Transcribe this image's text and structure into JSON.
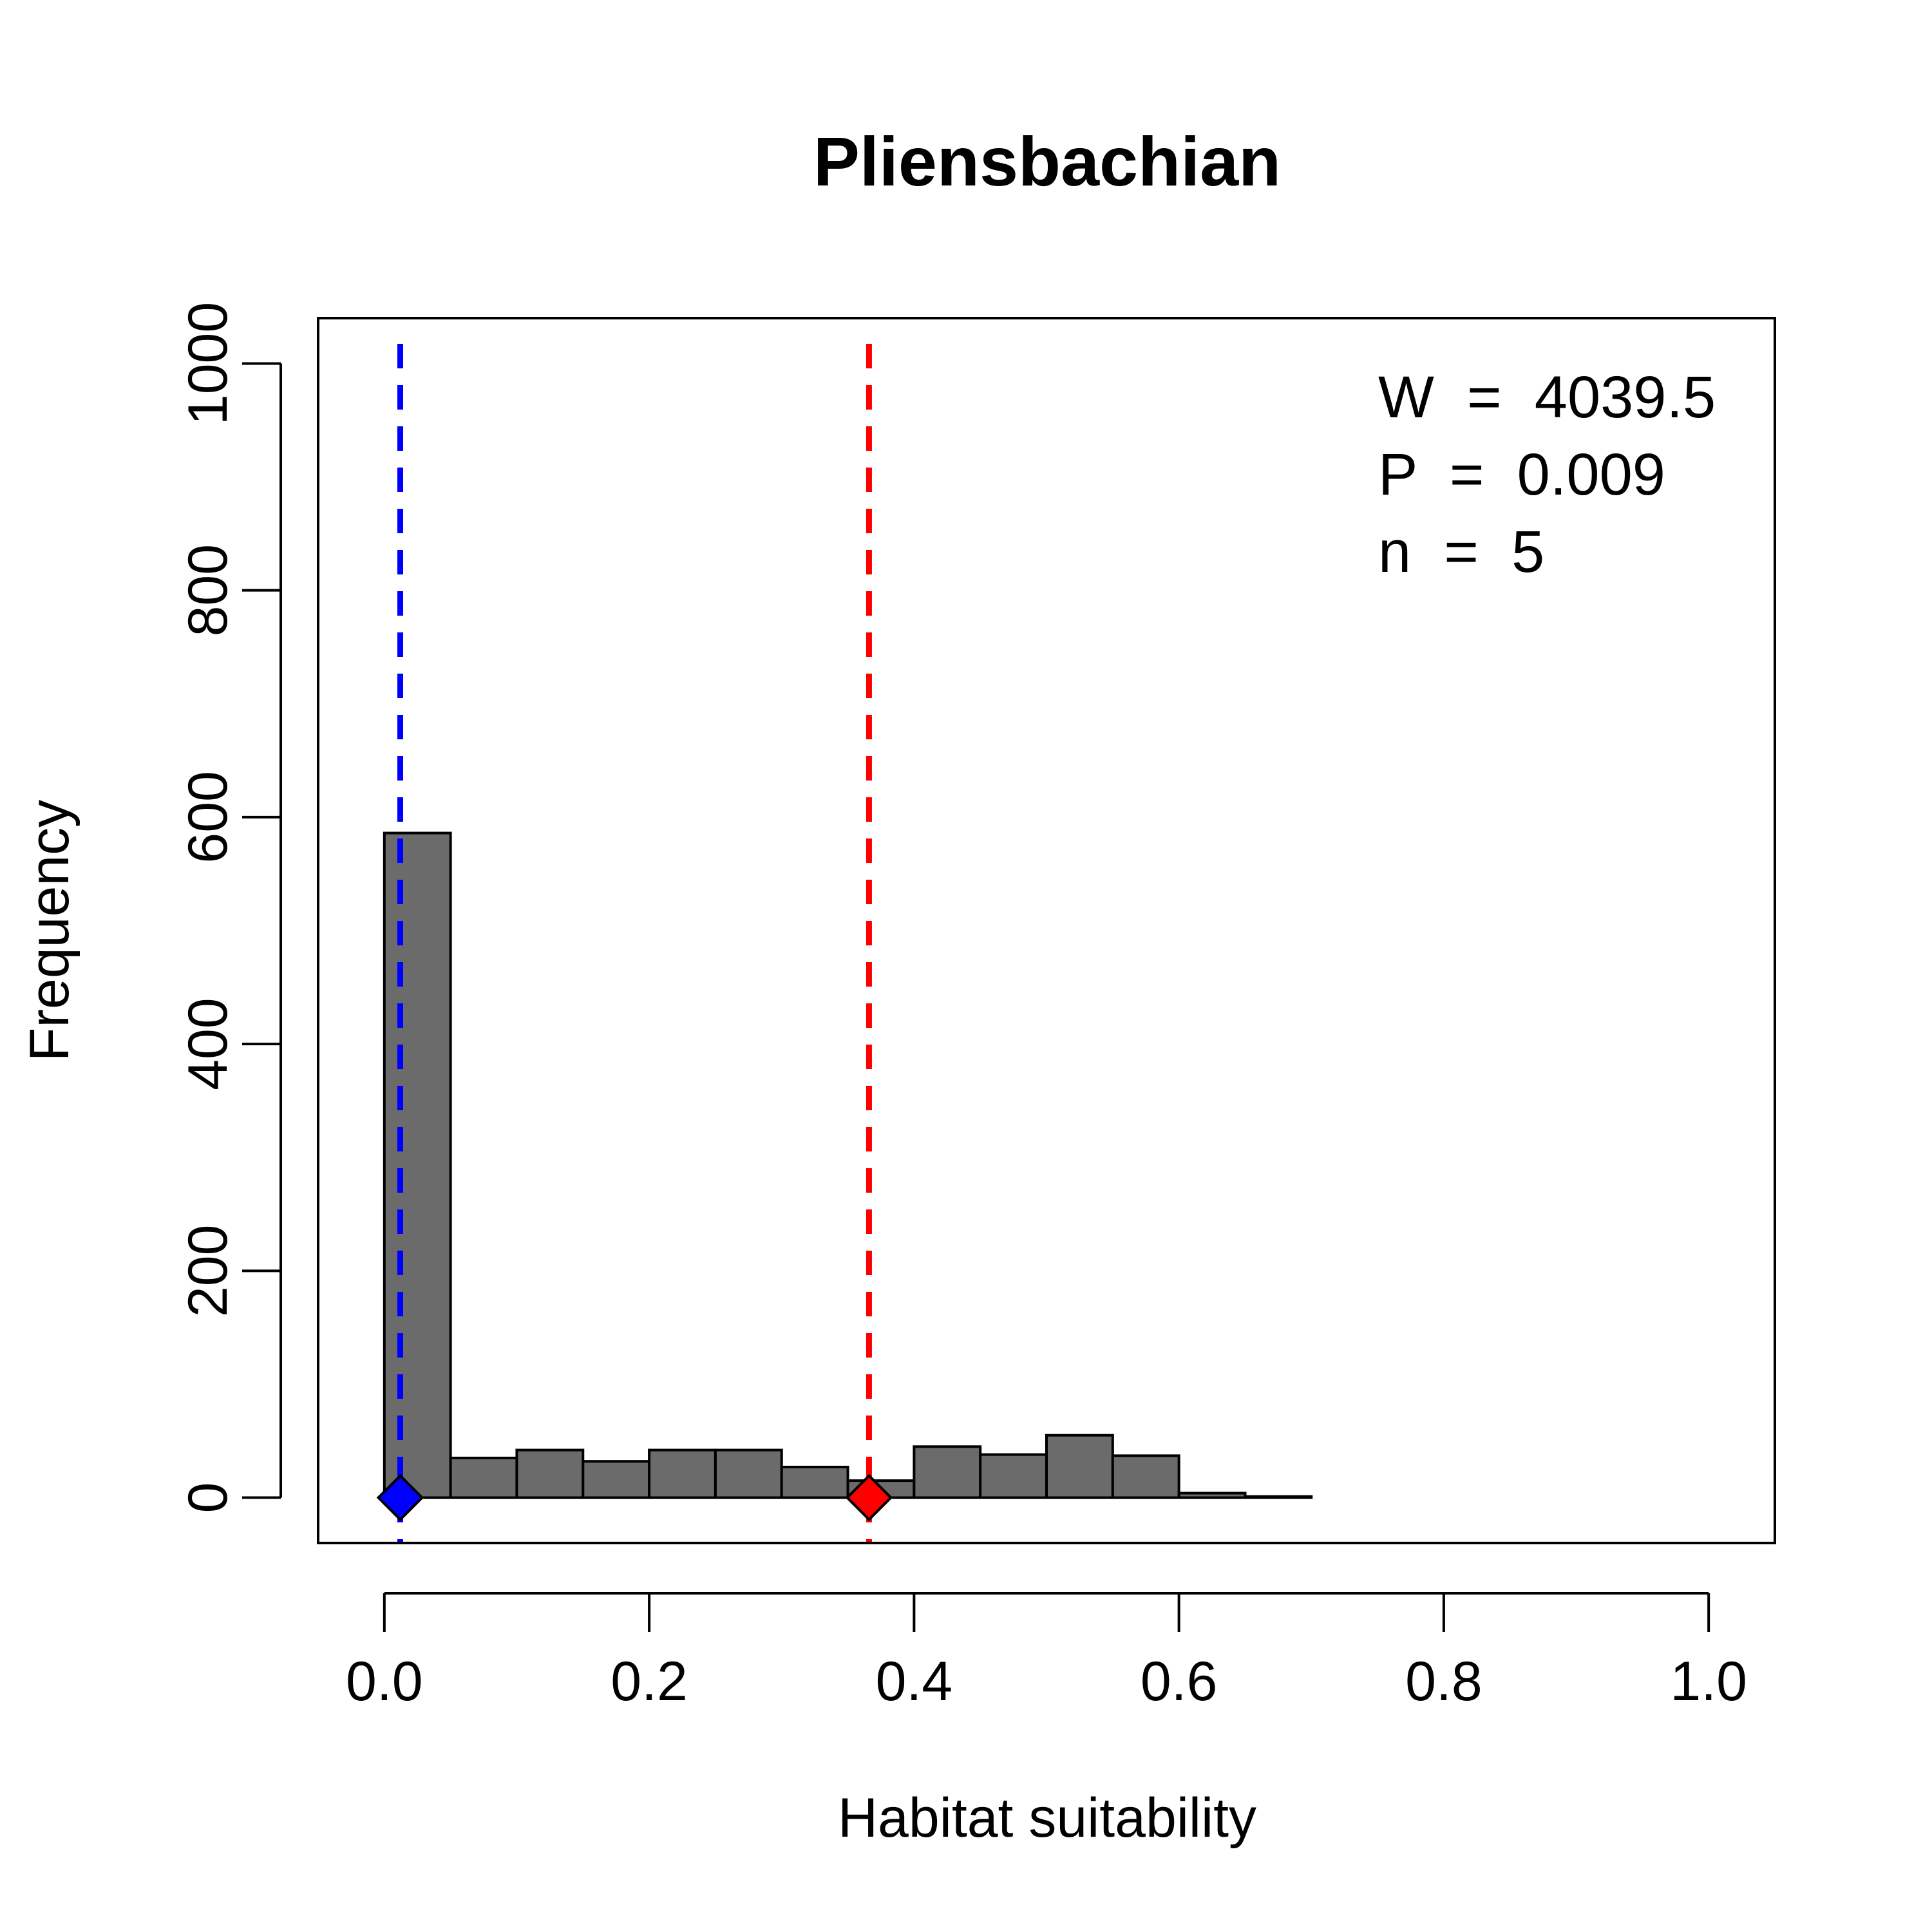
{
  "chart_data": {
    "type": "bar",
    "title": "Pliensbachian",
    "xlabel": "Habitat suitability",
    "ylabel": "Frequency",
    "xlim": [
      -0.05,
      1.05
    ],
    "ylim": [
      -40,
      1040
    ],
    "x_ticks": [
      0.0,
      0.2,
      0.4,
      0.6,
      0.8,
      1.0
    ],
    "x_tick_labels": [
      "0.0",
      "0.2",
      "0.4",
      "0.6",
      "0.8",
      "1.0"
    ],
    "y_ticks": [
      0,
      200,
      400,
      600,
      800,
      1000
    ],
    "y_tick_labels": [
      "0",
      "200",
      "400",
      "600",
      "800",
      "1000"
    ],
    "grid": false,
    "bin_width": 0.05,
    "bins": [
      {
        "x0": 0.0,
        "x1": 0.05,
        "count": 586
      },
      {
        "x0": 0.05,
        "x1": 0.1,
        "count": 35
      },
      {
        "x0": 0.1,
        "x1": 0.15,
        "count": 42
      },
      {
        "x0": 0.15,
        "x1": 0.2,
        "count": 32
      },
      {
        "x0": 0.2,
        "x1": 0.25,
        "count": 42
      },
      {
        "x0": 0.25,
        "x1": 0.3,
        "count": 42
      },
      {
        "x0": 0.3,
        "x1": 0.35,
        "count": 27
      },
      {
        "x0": 0.35,
        "x1": 0.4,
        "count": 15
      },
      {
        "x0": 0.4,
        "x1": 0.45,
        "count": 45
      },
      {
        "x0": 0.45,
        "x1": 0.5,
        "count": 38
      },
      {
        "x0": 0.5,
        "x1": 0.55,
        "count": 55
      },
      {
        "x0": 0.55,
        "x1": 0.6,
        "count": 37
      },
      {
        "x0": 0.6,
        "x1": 0.65,
        "count": 4
      },
      {
        "x0": 0.65,
        "x1": 0.7,
        "count": 1
      }
    ],
    "reference_lines": [
      {
        "x": 0.012,
        "color": "#0000ff",
        "style": "dashed",
        "marker": "diamond",
        "marker_y": 0
      },
      {
        "x": 0.366,
        "color": "#ff0000",
        "style": "dashed",
        "marker": "diamond",
        "marker_y": 0
      }
    ],
    "annotations": [
      "W  =  4039.5",
      "P  =  0.009",
      "n  =  5"
    ],
    "annotation_placement": "top-right",
    "bar_color": "#6b6b6b"
  }
}
